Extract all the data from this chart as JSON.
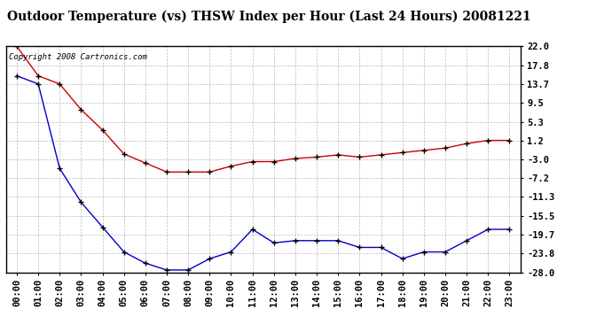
{
  "title": "Outdoor Temperature (vs) THSW Index per Hour (Last 24 Hours) 20081221",
  "copyright": "Copyright 2008 Cartronics.com",
  "x_labels": [
    "00:00",
    "01:00",
    "02:00",
    "03:00",
    "04:00",
    "05:00",
    "06:00",
    "07:00",
    "08:00",
    "09:00",
    "10:00",
    "11:00",
    "12:00",
    "13:00",
    "14:00",
    "15:00",
    "16:00",
    "17:00",
    "18:00",
    "19:00",
    "20:00",
    "21:00",
    "22:00",
    "23:00"
  ],
  "y_ticks": [
    22.0,
    17.8,
    13.7,
    9.5,
    5.3,
    1.2,
    -3.0,
    -7.2,
    -11.3,
    -15.5,
    -19.7,
    -23.8,
    -28.0
  ],
  "red_data": [
    22.0,
    15.5,
    13.7,
    8.0,
    3.5,
    -1.8,
    -3.8,
    -5.8,
    -5.8,
    -5.8,
    -4.5,
    -3.5,
    -3.5,
    -2.8,
    -2.5,
    -2.0,
    -2.5,
    -2.0,
    -1.5,
    -1.0,
    -0.5,
    0.5,
    1.2,
    1.2
  ],
  "blue_data": [
    15.5,
    13.7,
    -5.0,
    -12.5,
    -18.0,
    -23.5,
    -26.0,
    -27.5,
    -27.5,
    -25.0,
    -23.5,
    -18.5,
    -21.5,
    -21.0,
    -21.0,
    -21.0,
    -22.5,
    -22.5,
    -25.0,
    -23.5,
    -23.5,
    -21.0,
    -18.5,
    -18.5
  ],
  "red_color": "#cc0000",
  "blue_color": "#0000cc",
  "bg_color": "#ffffff",
  "plot_bg_color": "#ffffff",
  "grid_color": "#aaaaaa",
  "title_color": "#000000",
  "ylim_min": -28.0,
  "ylim_max": 22.0,
  "title_fontsize": 10,
  "copyright_fontsize": 6.5,
  "tick_fontsize": 7.5,
  "ytick_fontsize": 7.5
}
